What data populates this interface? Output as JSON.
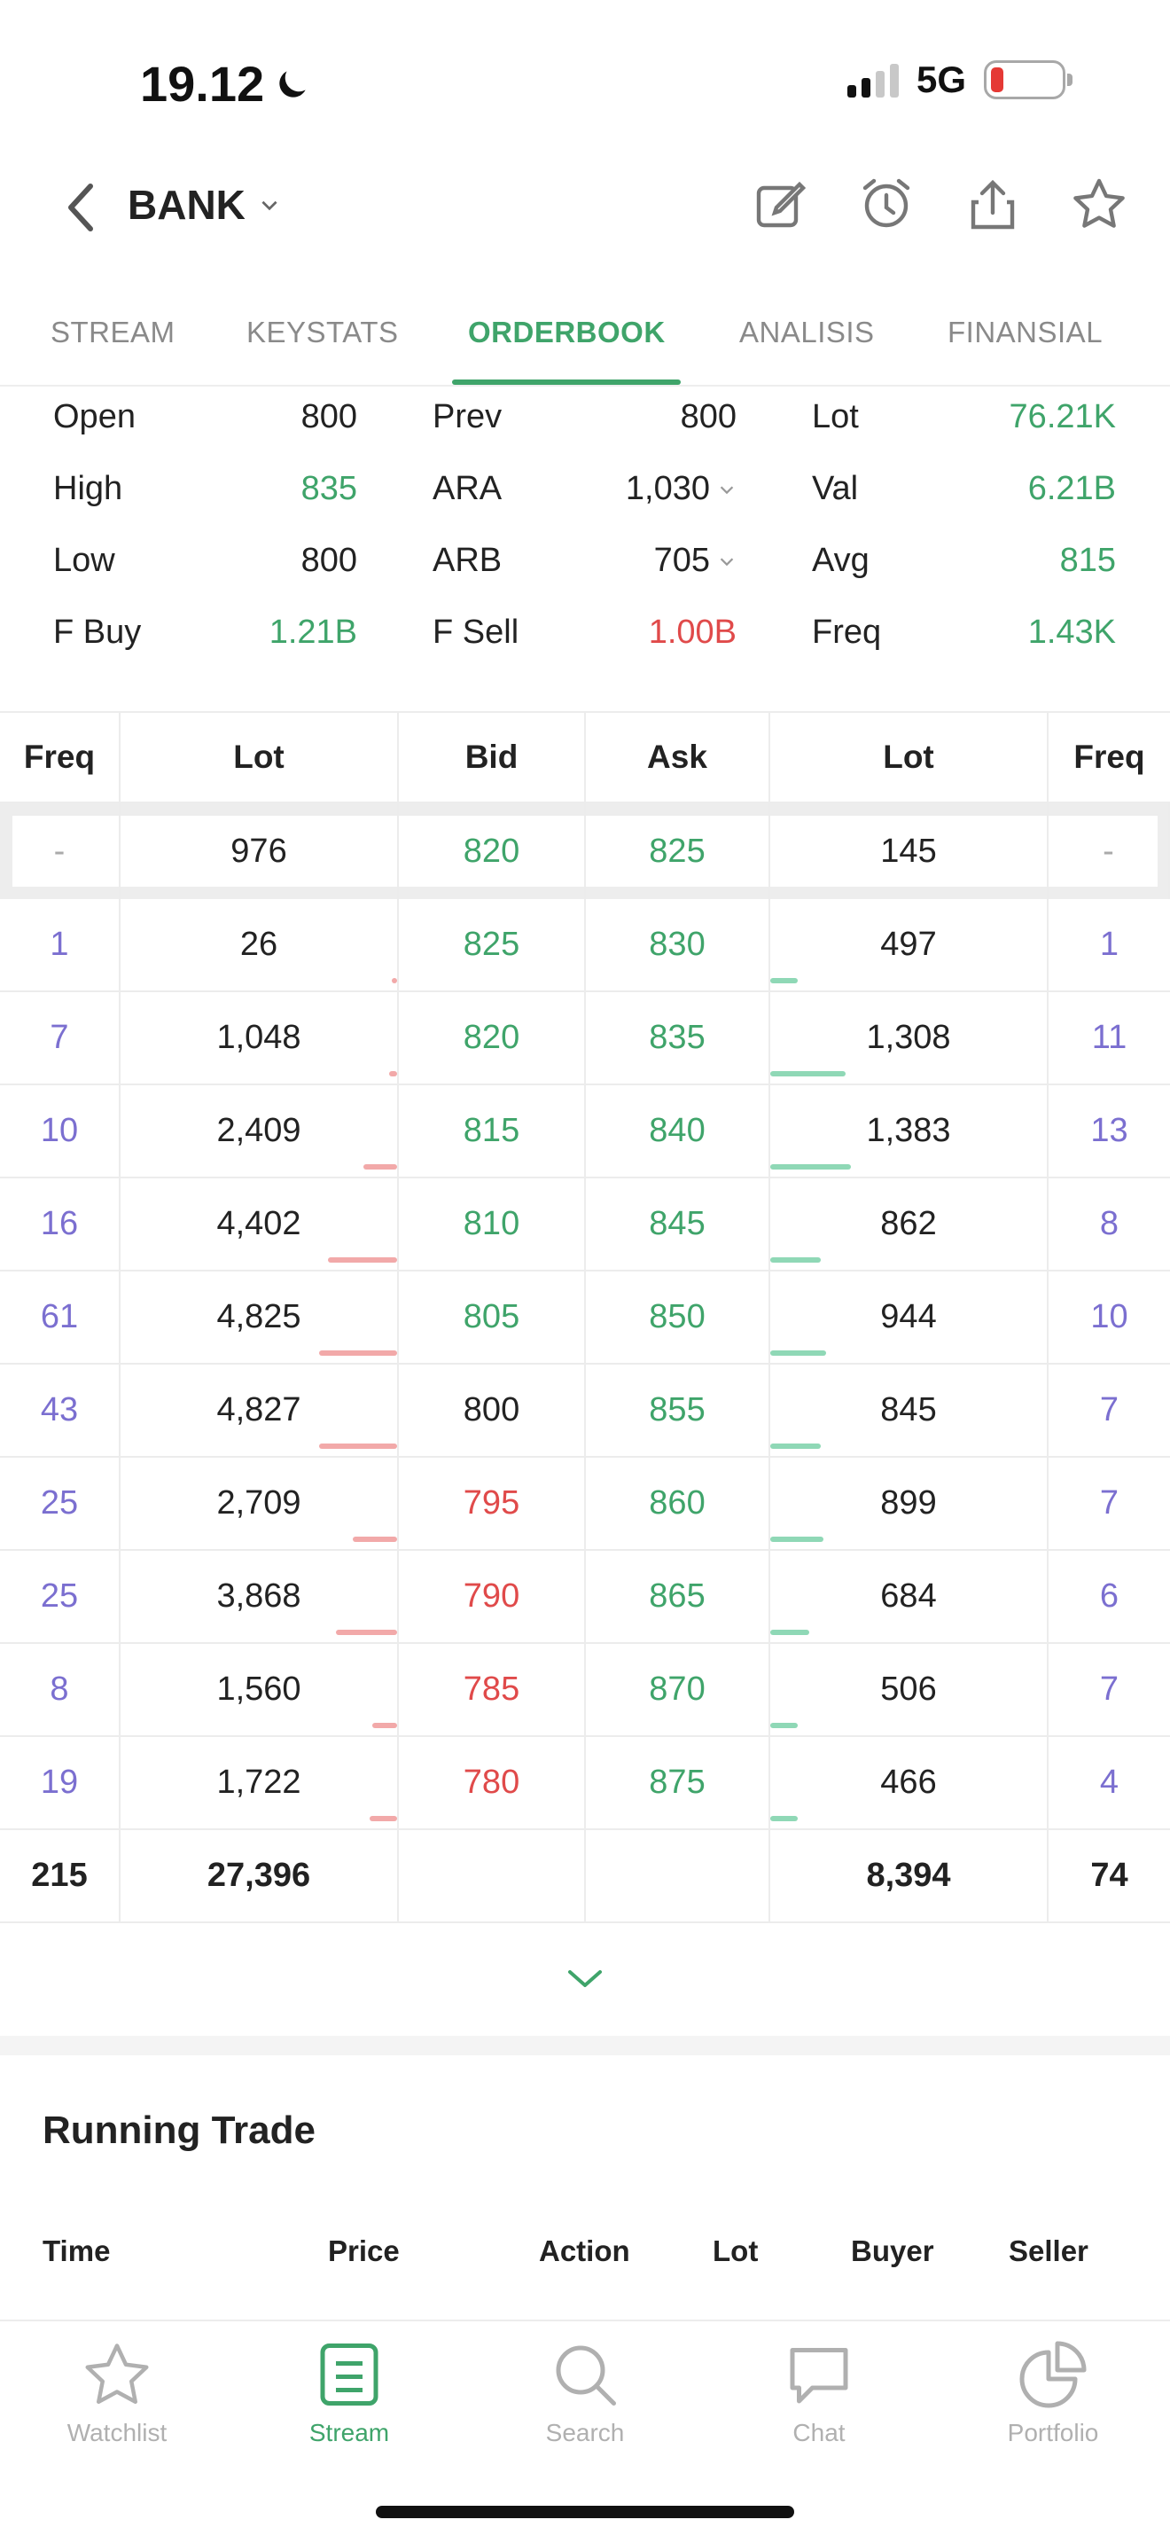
{
  "status_bar": {
    "time": "19.12",
    "network": "5G"
  },
  "header": {
    "ticker": "BANK"
  },
  "tabs": [
    {
      "label": "STREAM",
      "active": false
    },
    {
      "label": "KEYSTATS",
      "active": false
    },
    {
      "label": "ORDERBOOK",
      "active": true
    },
    {
      "label": "ANALISIS",
      "active": false
    },
    {
      "label": "FINANSIAL",
      "active": false
    }
  ],
  "stats": {
    "col1": [
      {
        "label": "Open",
        "value": "800"
      },
      {
        "label": "High",
        "value": "835"
      },
      {
        "label": "Low",
        "value": "800"
      },
      {
        "label": "F Buy",
        "value": "1.21B"
      }
    ],
    "col2": [
      {
        "label": "Prev",
        "value": "800"
      },
      {
        "label": "ARA",
        "value": "1,030"
      },
      {
        "label": "ARB",
        "value": "705"
      },
      {
        "label": "F Sell",
        "value": "1.00B"
      }
    ],
    "col3": [
      {
        "label": "Lot",
        "value": "76.21K"
      },
      {
        "label": "Val",
        "value": "6.21B"
      },
      {
        "label": "Avg",
        "value": "815"
      },
      {
        "label": "Freq",
        "value": "1.43K"
      }
    ]
  },
  "orderbook": {
    "headers": [
      "Freq",
      "Lot",
      "Bid",
      "Ask",
      "Lot",
      "Freq"
    ],
    "best": {
      "bid_freq": "-",
      "bid_lot": "976",
      "bid": "820",
      "ask": "825",
      "ask_lot": "145",
      "ask_freq": "-"
    },
    "rows": [
      {
        "bid_freq": "1",
        "bid_lot": "26",
        "bid": "825",
        "ask": "830",
        "ask_lot": "497",
        "ask_freq": "1",
        "bid_color": "green",
        "bid_depth": 0.01,
        "ask_depth": 0.1
      },
      {
        "bid_freq": "7",
        "bid_lot": "1,048",
        "bid": "820",
        "ask": "835",
        "ask_lot": "1,308",
        "ask_freq": "11",
        "bid_color": "green",
        "bid_depth": 0.03,
        "ask_depth": 0.27
      },
      {
        "bid_freq": "10",
        "bid_lot": "2,409",
        "bid": "815",
        "ask": "840",
        "ask_lot": "1,383",
        "ask_freq": "13",
        "bid_color": "green",
        "bid_depth": 0.12,
        "ask_depth": 0.29
      },
      {
        "bid_freq": "16",
        "bid_lot": "4,402",
        "bid": "810",
        "ask": "845",
        "ask_lot": "862",
        "ask_freq": "8",
        "bid_color": "green",
        "bid_depth": 0.25,
        "ask_depth": 0.18
      },
      {
        "bid_freq": "61",
        "bid_lot": "4,825",
        "bid": "805",
        "ask": "850",
        "ask_lot": "944",
        "ask_freq": "10",
        "bid_color": "green",
        "bid_depth": 0.28,
        "ask_depth": 0.2
      },
      {
        "bid_freq": "43",
        "bid_lot": "4,827",
        "bid": "800",
        "ask": "855",
        "ask_lot": "845",
        "ask_freq": "7",
        "bid_color": "neutral",
        "bid_depth": 0.28,
        "ask_depth": 0.18
      },
      {
        "bid_freq": "25",
        "bid_lot": "2,709",
        "bid": "795",
        "ask": "860",
        "ask_lot": "899",
        "ask_freq": "7",
        "bid_color": "red",
        "bid_depth": 0.16,
        "ask_depth": 0.19
      },
      {
        "bid_freq": "25",
        "bid_lot": "3,868",
        "bid": "790",
        "ask": "865",
        "ask_lot": "684",
        "ask_freq": "6",
        "bid_color": "red",
        "bid_depth": 0.22,
        "ask_depth": 0.14
      },
      {
        "bid_freq": "8",
        "bid_lot": "1,560",
        "bid": "785",
        "ask": "870",
        "ask_lot": "506",
        "ask_freq": "7",
        "bid_color": "red",
        "bid_depth": 0.09,
        "ask_depth": 0.1
      },
      {
        "bid_freq": "19",
        "bid_lot": "1,722",
        "bid": "780",
        "ask": "875",
        "ask_lot": "466",
        "ask_freq": "4",
        "bid_color": "red",
        "bid_depth": 0.1,
        "ask_depth": 0.1
      }
    ],
    "total": {
      "bid_freq": "215",
      "bid_lot": "27,396",
      "ask_lot": "8,394",
      "ask_freq": "74"
    }
  },
  "running_trade": {
    "title": "Running Trade",
    "headers": [
      "Time",
      "Price",
      "Action",
      "Lot",
      "Buyer",
      "Seller"
    ]
  },
  "bottom_nav": [
    {
      "label": "Watchlist",
      "icon": "star-icon",
      "active": false
    },
    {
      "label": "Stream",
      "icon": "stream-icon",
      "active": true
    },
    {
      "label": "Search",
      "icon": "search-icon",
      "active": false
    },
    {
      "label": "Chat",
      "icon": "chat-icon",
      "active": false
    },
    {
      "label": "Portfolio",
      "icon": "pie-chart-icon",
      "active": false
    }
  ],
  "colors": {
    "green": "#3fa46a",
    "red": "#e04a4a",
    "freq": "#7b6fd0"
  }
}
